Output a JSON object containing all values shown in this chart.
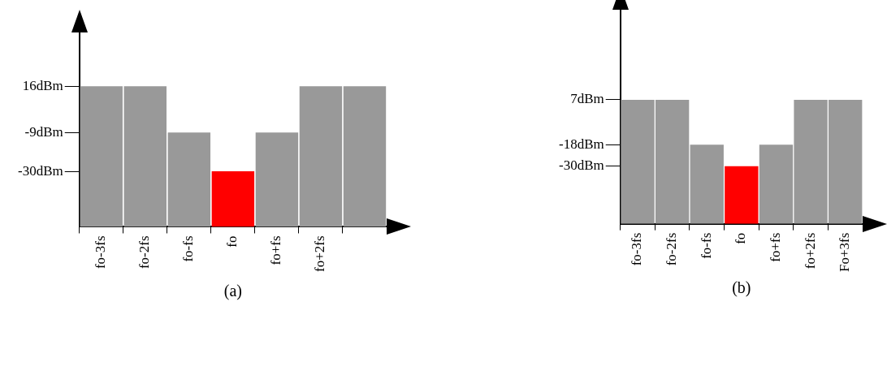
{
  "chart_data": [
    {
      "type": "bar",
      "categories": [
        "fo-3fs",
        "fo-2fs",
        "fo-fs",
        "fo",
        "fo+fs",
        "fo+2fs",
        null
      ],
      "base": [
        -60,
        -60,
        -60,
        -60,
        -60,
        -60,
        -60
      ],
      "values": [
        76,
        76,
        51,
        30,
        51,
        76,
        76
      ],
      "colors": [
        "#999999",
        "#999999",
        "#999999",
        "#ff0000",
        "#999999",
        "#999999",
        "#999999"
      ],
      "ylim": [
        -60,
        45
      ],
      "yticks": [
        {
          "value": -30,
          "label": "-30dBm"
        },
        {
          "value": -9,
          "label": "-9dBm"
        },
        {
          "value": 16,
          "label": "16dBm"
        }
      ],
      "grid": false,
      "legend": false,
      "annotations": [
        "(a)"
      ]
    },
    {
      "type": "bar",
      "categories": [
        "fo-3fs",
        "fo-2fs",
        "fo-fs",
        "fo",
        "fo+fs",
        "fo+2fs",
        "Fo+3fs"
      ],
      "base": [
        -62,
        -62,
        -62,
        -62,
        -62,
        -62,
        -62
      ],
      "values": [
        69,
        69,
        44,
        32,
        44,
        69,
        69
      ],
      "colors": [
        "#999999",
        "#999999",
        "#999999",
        "#ff0000",
        "#999999",
        "#999999",
        "#999999"
      ],
      "ylim": [
        -62,
        57
      ],
      "yticks": [
        {
          "value": -30,
          "label": "-30dBm"
        },
        {
          "value": -18,
          "label": "-18dBm"
        },
        {
          "value": 7,
          "label": "7dBm"
        }
      ],
      "grid": false,
      "legend": false,
      "annotations": [
        "(b)"
      ]
    }
  ]
}
